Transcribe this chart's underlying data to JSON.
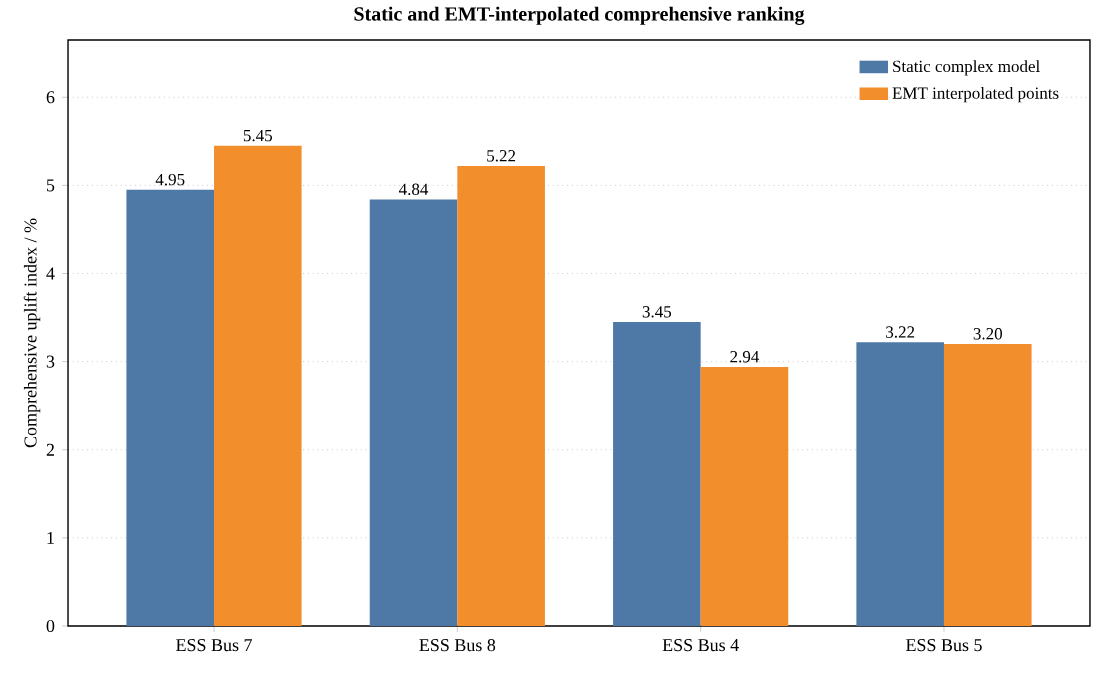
{
  "chart_data": {
    "type": "bar",
    "title": "Static and EMT-interpolated comprehensive ranking",
    "ylabel": "Comprehensive uplift index / %",
    "categories": [
      "ESS Bus 7",
      "ESS Bus 8",
      "ESS Bus 4",
      "ESS Bus 5"
    ],
    "series": [
      {
        "name": "Static complex model",
        "color": "#4e79a7",
        "values": [
          4.95,
          4.84,
          3.45,
          3.22
        ],
        "value_labels": [
          "4.95",
          "4.84",
          "3.45",
          "3.22"
        ]
      },
      {
        "name": "EMT interpolated points",
        "color": "#f28e2b",
        "values": [
          5.45,
          5.22,
          2.94,
          3.2
        ],
        "value_labels": [
          "5.45",
          "5.22",
          "2.94",
          "3.20"
        ]
      }
    ],
    "ylim": [
      0,
      6.65
    ],
    "yticks": [
      0,
      1,
      2,
      3,
      4,
      5,
      6
    ],
    "grid": "y",
    "legend": "top right"
  }
}
